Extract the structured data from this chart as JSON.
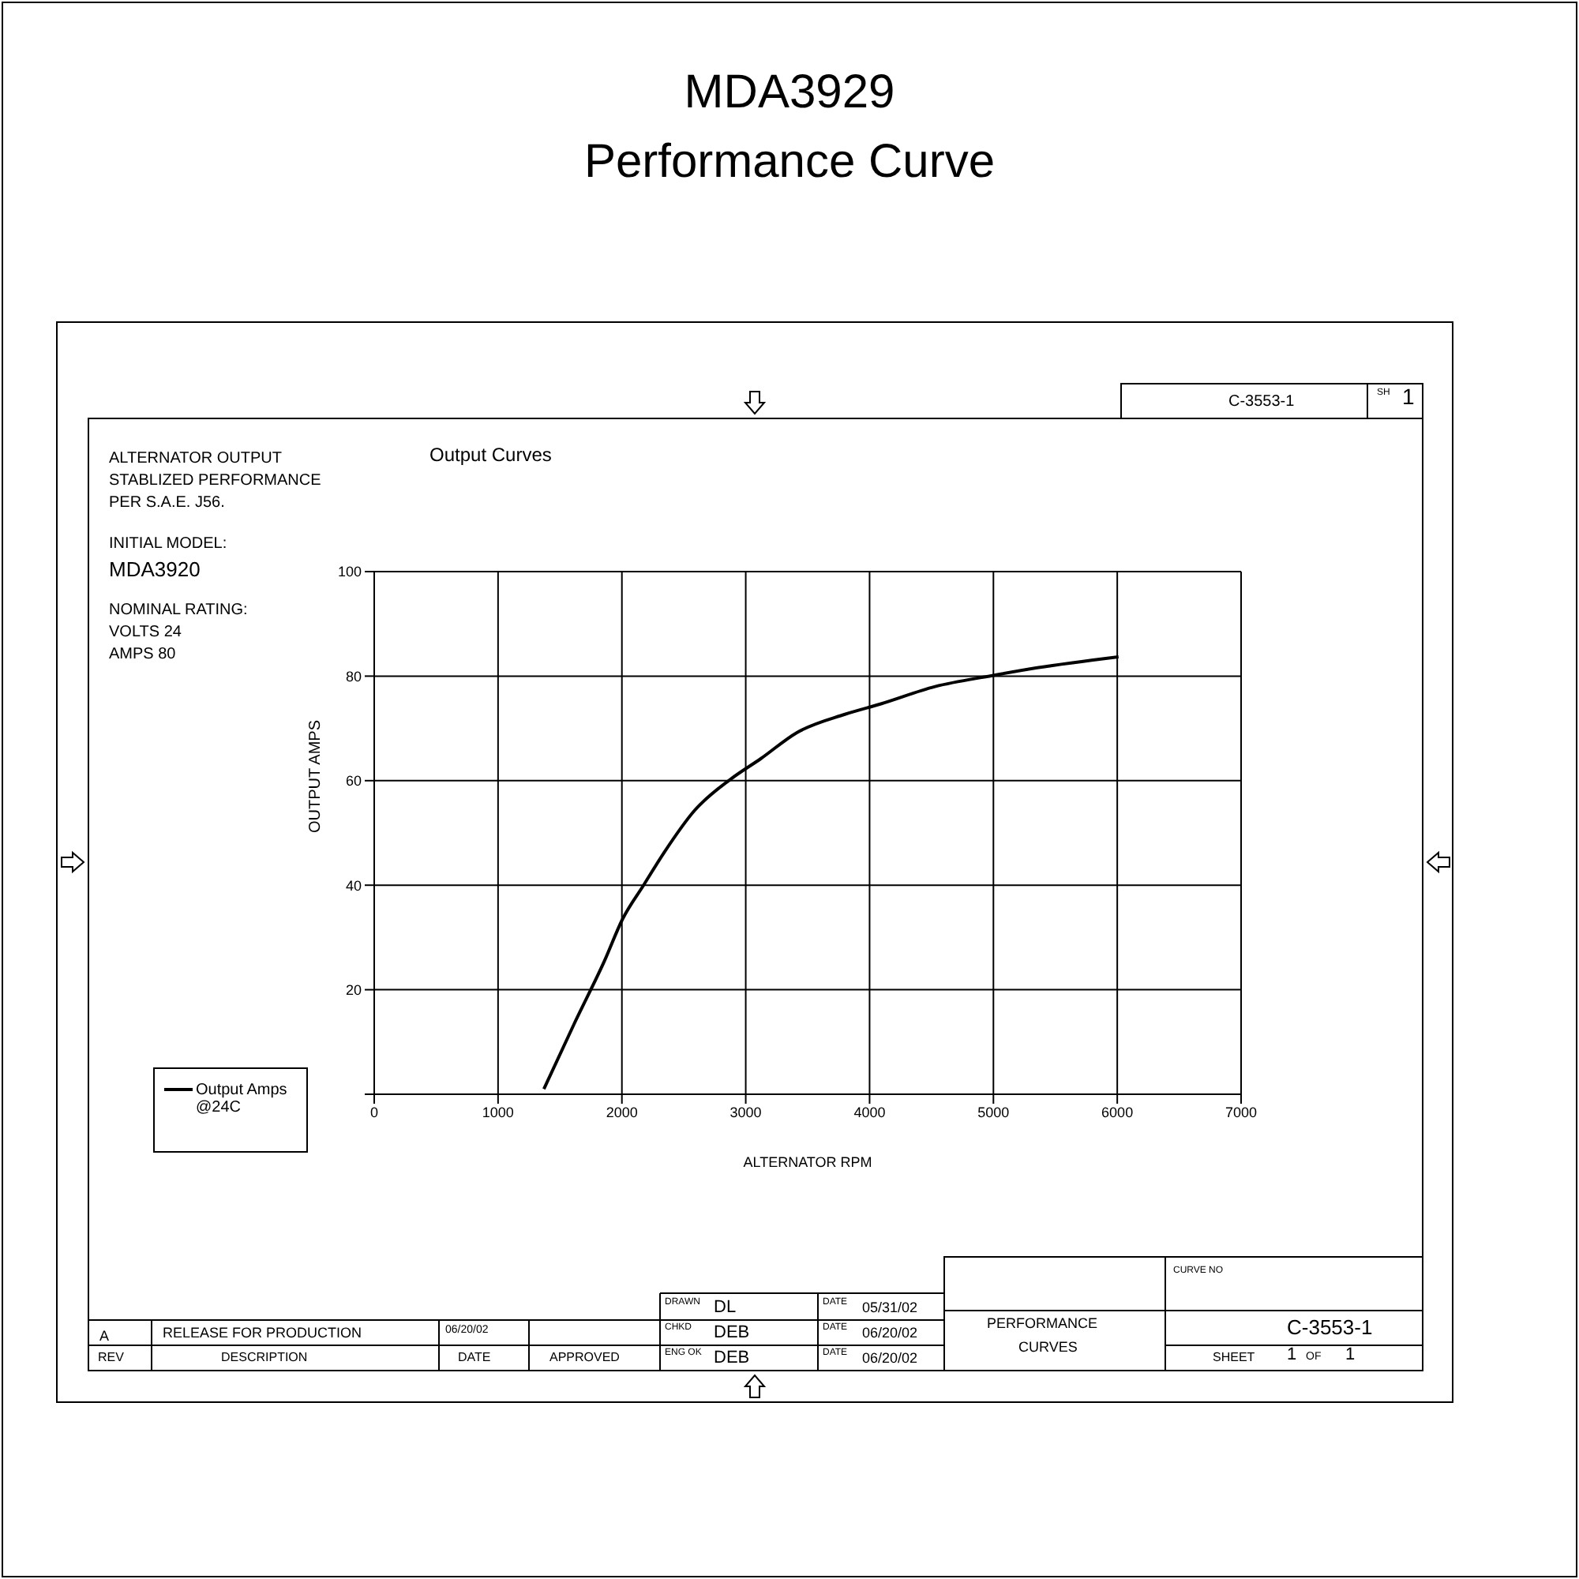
{
  "chart_data": {
    "type": "line",
    "title": "MDA3929",
    "subtitle": "Performance Curve",
    "xlabel": "ALTERNATOR RPM",
    "ylabel": "OUTPUT AMPS",
    "series": [
      {
        "name": "Output Amps @24C",
        "color": "#000000",
        "x": [
          1370,
          1617,
          1859,
          2005,
          2175,
          2345,
          2587,
          2879,
          3121,
          3413,
          3801,
          4092,
          4529,
          4990,
          5354,
          6010
        ],
        "values": [
          1,
          13.6,
          25.5,
          33.5,
          40,
          46.4,
          54.3,
          60.3,
          64.2,
          69.2,
          72.7,
          74.7,
          78,
          80.1,
          81.6,
          83.7
        ]
      }
    ],
    "xlim": [
      0,
      7000
    ],
    "xticks": [
      0,
      1000,
      2000,
      3000,
      4000,
      5000,
      6000,
      7000
    ],
    "ylim": [
      0,
      100
    ],
    "yticks": [
      {
        "value": 0,
        "label": null
      },
      20,
      40,
      60,
      80,
      100
    ],
    "grid": true,
    "legend": "bottom left",
    "marker": "none",
    "line_style": "solid",
    "annotations": [
      "Output Curves",
      "ALTERNATOR OUTPUT",
      "STABLIZED PERFORMANCE",
      "PER S.A.E. J56.",
      "INITIAL MODEL:",
      "MDA3920",
      "NOMINAL RATING:",
      "VOLTS 24",
      "AMPS 80",
      "C-3553-1",
      "SH",
      "1",
      "A",
      "RELEASE FOR PRODUCTION",
      "06/20/02",
      "REV",
      "DESCRIPTION",
      "DATE",
      "APPROVED",
      "DRAWN",
      "DL",
      "DATE",
      "05/31/02",
      "CHKD",
      "DEB",
      "DATE",
      "06/20/02",
      "ENG OK",
      "DEB",
      "DATE",
      "06/20/02",
      "PERFORMANCE",
      "CURVES",
      "CURVE NO",
      "C-3553-1",
      "SHEET",
      "1",
      "OF",
      "1"
    ]
  }
}
